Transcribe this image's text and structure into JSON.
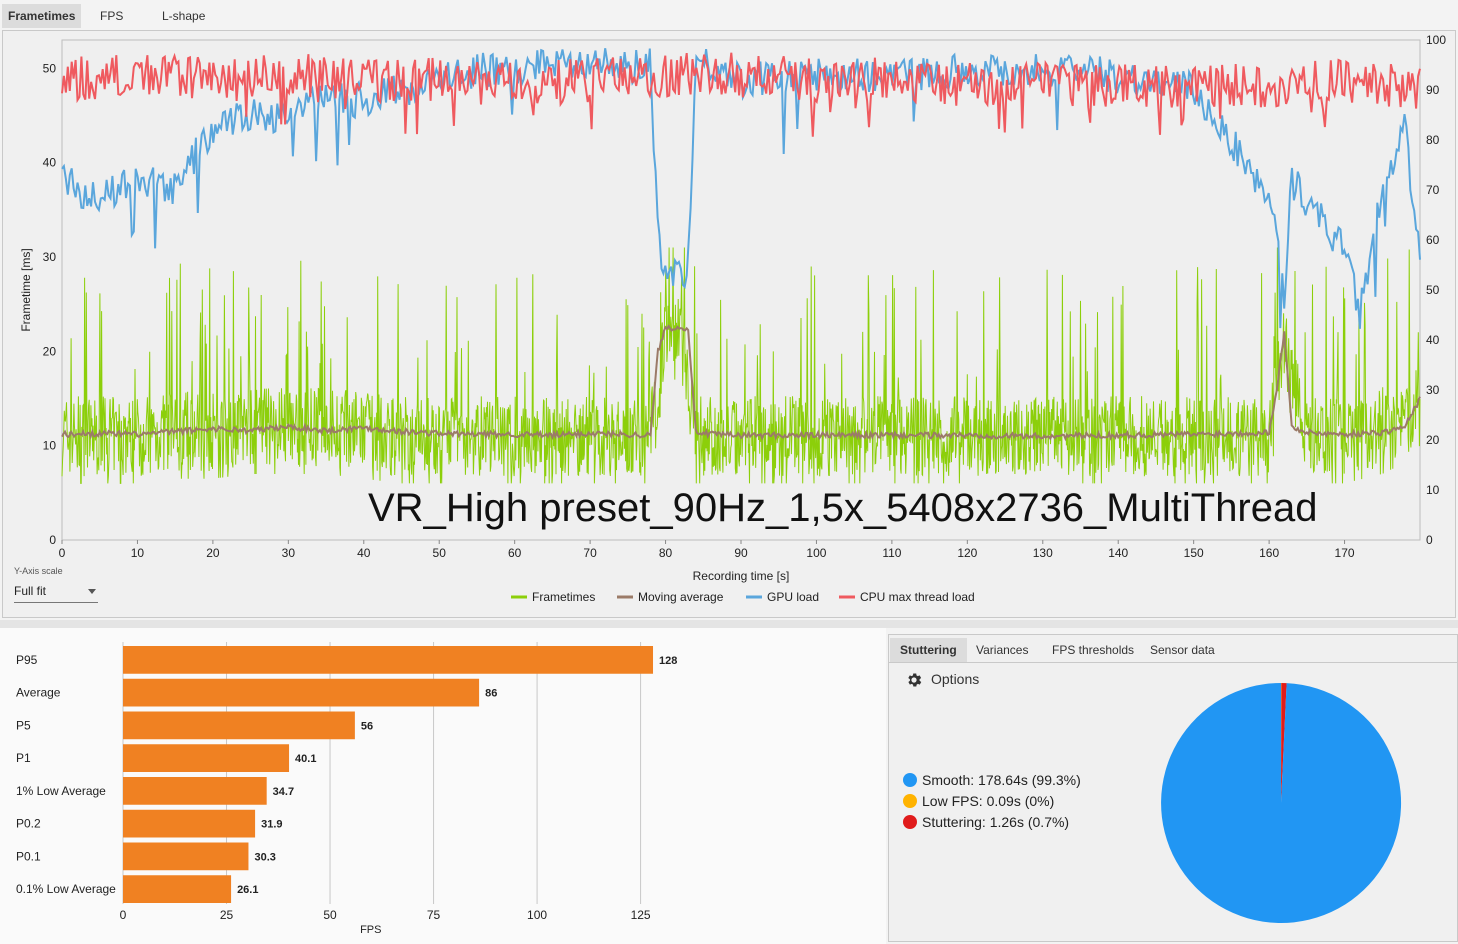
{
  "tabs": [
    {
      "label": "Frametimes",
      "active": true
    },
    {
      "label": "FPS",
      "active": false
    },
    {
      "label": "L-shape",
      "active": false
    }
  ],
  "chart_data": [
    {
      "type": "line",
      "title": "VR_High preset_90Hz_1,5x_5408x2736_MultiThread",
      "xlabel": "Recording time [s]",
      "ylabel": "Frametime [ms]",
      "xlim": [
        0,
        180
      ],
      "ylim": [
        0,
        53
      ],
      "y2lim": [
        0,
        100
      ],
      "x_ticks": [
        0,
        10,
        20,
        30,
        40,
        50,
        60,
        70,
        80,
        90,
        100,
        110,
        120,
        130,
        140,
        150,
        160,
        170
      ],
      "y_ticks": [
        0,
        10,
        20,
        30,
        40,
        50
      ],
      "y2_ticks": [
        0,
        10,
        20,
        30,
        40,
        50,
        60,
        70,
        80,
        90,
        100
      ],
      "legend_position": "bottom-center",
      "series": [
        {
          "name": "Frametimes",
          "color": "#8ccf0a",
          "axis": "left",
          "x": [
            0,
            5,
            10,
            15,
            20,
            25,
            30,
            35,
            40,
            45,
            50,
            55,
            60,
            65,
            70,
            75,
            78,
            80,
            82,
            84,
            86,
            90,
            100,
            110,
            120,
            130,
            140,
            150,
            155,
            160,
            162,
            165,
            170,
            175,
            180
          ],
          "values": [
            11,
            11,
            11,
            11.5,
            11.5,
            12,
            12,
            12,
            11.5,
            11,
            11,
            11,
            11,
            11,
            11,
            11,
            11,
            22,
            22,
            11,
            11,
            11,
            11,
            11,
            11,
            11,
            11,
            11,
            11,
            11,
            21,
            11,
            11,
            12,
            14
          ]
        },
        {
          "name": "Moving average",
          "color": "#9b7b68",
          "axis": "left",
          "x": [
            0,
            5,
            10,
            15,
            20,
            25,
            30,
            35,
            40,
            45,
            50,
            55,
            60,
            65,
            70,
            75,
            78,
            79,
            80,
            83,
            84,
            86,
            90,
            100,
            110,
            120,
            130,
            140,
            150,
            155,
            160,
            161,
            162,
            163,
            165,
            170,
            175,
            178,
            180
          ],
          "values": [
            11.2,
            11.3,
            11.2,
            11.5,
            11.8,
            11.6,
            12,
            11.6,
            11.9,
            11.5,
            11.3,
            11.2,
            11.2,
            11.1,
            11.3,
            11.2,
            11.1,
            20,
            22.5,
            22.5,
            11.5,
            11.2,
            11.1,
            11.1,
            11.1,
            11.1,
            11,
            11.1,
            11.2,
            11.3,
            11.4,
            16,
            22,
            12,
            11.4,
            11.2,
            11.4,
            12,
            15
          ]
        },
        {
          "name": "GPU load",
          "color": "#5aa6dc",
          "axis": "right",
          "x": [
            0,
            5,
            10,
            15,
            18,
            20,
            25,
            30,
            35,
            40,
            45,
            50,
            55,
            60,
            65,
            70,
            75,
            78,
            79,
            80,
            82,
            83,
            84,
            86,
            90,
            100,
            110,
            120,
            130,
            140,
            150,
            155,
            158,
            160,
            162,
            163,
            165,
            170,
            172,
            175,
            178,
            180
          ],
          "values": [
            72,
            68,
            72,
            70,
            78,
            82,
            85,
            85,
            88,
            88,
            90,
            92,
            94,
            94,
            96,
            96,
            94,
            96,
            60,
            55,
            53,
            55,
            96,
            95,
            92,
            93,
            93,
            94,
            94,
            93,
            90,
            80,
            72,
            70,
            48,
            72,
            68,
            58,
            45,
            70,
            82,
            55
          ]
        },
        {
          "name": "CPU max thread load",
          "color": "#ef5a5f",
          "axis": "right",
          "x": [
            0,
            10,
            20,
            30,
            40,
            50,
            60,
            70,
            80,
            90,
            100,
            110,
            120,
            130,
            140,
            150,
            160,
            170,
            180
          ],
          "values": [
            92,
            93,
            92,
            93,
            92,
            92,
            91,
            92,
            93,
            93,
            92,
            92,
            91,
            91,
            91,
            91,
            91,
            92,
            90
          ]
        }
      ]
    },
    {
      "type": "bar",
      "orientation": "horizontal",
      "xlabel": "FPS",
      "xlim": [
        0,
        135
      ],
      "x_ticks": [
        0,
        25,
        50,
        75,
        100,
        125
      ],
      "categories": [
        "P95",
        "Average",
        "P5",
        "P1",
        "1% Low Average",
        "P0.2",
        "P0.1",
        "0.1% Low Average"
      ],
      "values": [
        128,
        86,
        56,
        40.1,
        34.7,
        31.9,
        30.3,
        26.1
      ],
      "value_labels": [
        "128",
        "86",
        "56",
        "40.1",
        "34.7",
        "31.9",
        "30.3",
        "26.1"
      ],
      "color": "#f08122"
    },
    {
      "type": "pie",
      "categories": [
        "Smooth",
        "Low FPS",
        "Stuttering"
      ],
      "values": [
        99.3,
        0.05,
        0.7
      ],
      "colors": [
        "#2196f3",
        "#ffb300",
        "#e01b1b"
      ]
    }
  ],
  "yaxis_scale": {
    "label": "Y-Axis scale",
    "value": "Full fit"
  },
  "stutter_panel": {
    "tabs": [
      {
        "label": "Stuttering",
        "active": true
      },
      {
        "label": "Variances",
        "active": false
      },
      {
        "label": "FPS thresholds",
        "active": false
      },
      {
        "label": "Sensor data",
        "active": false
      }
    ],
    "options_label": "Options",
    "legend": [
      {
        "label": "Smooth:",
        "value": "178.64s (99.3%)",
        "color": "#2196f3"
      },
      {
        "label": "Low FPS:",
        "value": "0.09s (0%)",
        "color": "#ffb300"
      },
      {
        "label": "Stuttering:",
        "value": "1.26s (0.7%)",
        "color": "#e01b1b"
      }
    ]
  }
}
